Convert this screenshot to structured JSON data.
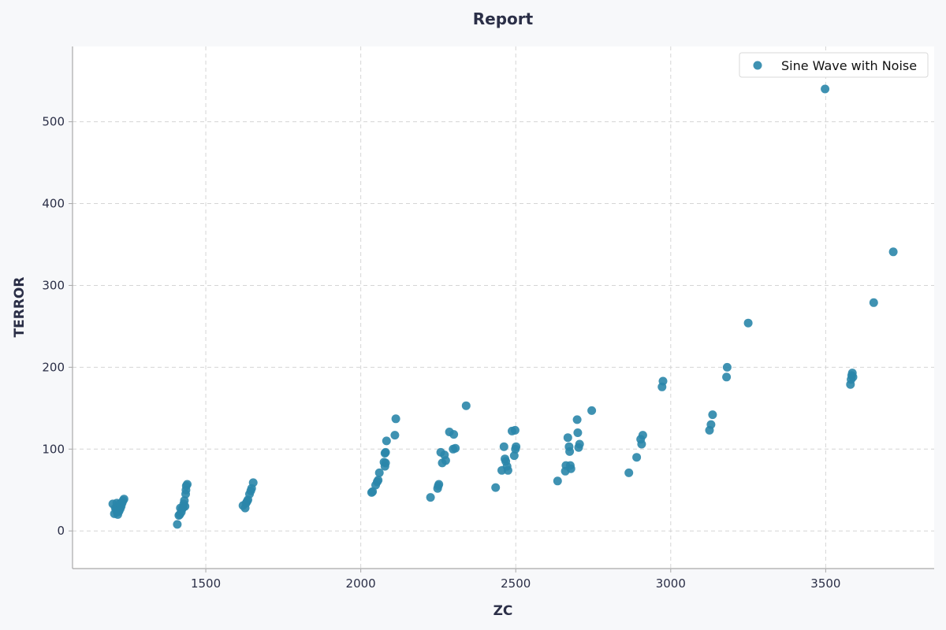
{
  "chart_data": {
    "type": "scatter",
    "title": "Report",
    "xlabel": "ZC",
    "ylabel": "TERROR",
    "xlim": [
      1070,
      3850
    ],
    "ylim": [
      -46,
      592
    ],
    "xticks": [
      1500,
      2000,
      2500,
      3000,
      3500
    ],
    "yticks": [
      0,
      100,
      200,
      300,
      400,
      500
    ],
    "grid": true,
    "legend_position": "top-right",
    "colors": {
      "point": "#2a86aa",
      "background": "#f7f8fa",
      "plot_background": "#ffffff",
      "grid": "#d5d5d5",
      "axis": "#a9a9a9",
      "text": "#2b2f47"
    },
    "series": [
      {
        "name": "Sine Wave with Noise",
        "points": [
          [
            1200,
            33
          ],
          [
            1205,
            21
          ],
          [
            1208,
            28
          ],
          [
            1211,
            26
          ],
          [
            1213,
            34
          ],
          [
            1214,
            23
          ],
          [
            1216,
            20
          ],
          [
            1218,
            29
          ],
          [
            1220,
            24
          ],
          [
            1222,
            33
          ],
          [
            1224,
            27
          ],
          [
            1227,
            30
          ],
          [
            1230,
            34
          ],
          [
            1233,
            37
          ],
          [
            1236,
            39
          ],
          [
            1408,
            8
          ],
          [
            1413,
            19
          ],
          [
            1416,
            20
          ],
          [
            1418,
            28
          ],
          [
            1421,
            23
          ],
          [
            1424,
            27
          ],
          [
            1427,
            29
          ],
          [
            1429,
            33
          ],
          [
            1431,
            37
          ],
          [
            1433,
            30
          ],
          [
            1435,
            45
          ],
          [
            1436,
            50
          ],
          [
            1437,
            55
          ],
          [
            1440,
            57
          ],
          [
            1620,
            31
          ],
          [
            1627,
            28
          ],
          [
            1630,
            34
          ],
          [
            1633,
            36
          ],
          [
            1636,
            38
          ],
          [
            1641,
            45
          ],
          [
            1645,
            49
          ],
          [
            1648,
            52
          ],
          [
            1653,
            59
          ],
          [
            2035,
            47
          ],
          [
            2038,
            48
          ],
          [
            2048,
            56
          ],
          [
            2053,
            60
          ],
          [
            2056,
            62
          ],
          [
            2060,
            71
          ],
          [
            2075,
            84
          ],
          [
            2078,
            79
          ],
          [
            2080,
            83
          ],
          [
            2078,
            95
          ],
          [
            2080,
            96
          ],
          [
            2083,
            110
          ],
          [
            2110,
            117
          ],
          [
            2113,
            137
          ],
          [
            2225,
            41
          ],
          [
            2248,
            52
          ],
          [
            2250,
            55
          ],
          [
            2252,
            57
          ],
          [
            2258,
            96
          ],
          [
            2263,
            83
          ],
          [
            2270,
            93
          ],
          [
            2274,
            86
          ],
          [
            2286,
            121
          ],
          [
            2298,
            100
          ],
          [
            2300,
            118
          ],
          [
            2305,
            101
          ],
          [
            2340,
            153
          ],
          [
            2435,
            53
          ],
          [
            2455,
            74
          ],
          [
            2462,
            103
          ],
          [
            2465,
            88
          ],
          [
            2468,
            85
          ],
          [
            2472,
            79
          ],
          [
            2475,
            74
          ],
          [
            2488,
            122
          ],
          [
            2495,
            92
          ],
          [
            2498,
            123
          ],
          [
            2499,
            100
          ],
          [
            2501,
            103
          ],
          [
            2635,
            61
          ],
          [
            2660,
            73
          ],
          [
            2662,
            80
          ],
          [
            2668,
            114
          ],
          [
            2672,
            103
          ],
          [
            2674,
            97
          ],
          [
            2676,
            80
          ],
          [
            2678,
            76
          ],
          [
            2698,
            136
          ],
          [
            2700,
            120
          ],
          [
            2703,
            102
          ],
          [
            2706,
            106
          ],
          [
            2745,
            147
          ],
          [
            2865,
            71
          ],
          [
            2890,
            90
          ],
          [
            2903,
            112
          ],
          [
            2906,
            106
          ],
          [
            2910,
            117
          ],
          [
            2972,
            176
          ],
          [
            2975,
            183
          ],
          [
            3125,
            123
          ],
          [
            3130,
            130
          ],
          [
            3135,
            142
          ],
          [
            3180,
            188
          ],
          [
            3182,
            200
          ],
          [
            3250,
            254
          ],
          [
            3498,
            540
          ],
          [
            3580,
            179
          ],
          [
            3582,
            185
          ],
          [
            3584,
            190
          ],
          [
            3586,
            193
          ],
          [
            3588,
            188
          ],
          [
            3655,
            279
          ],
          [
            3718,
            341
          ]
        ]
      }
    ]
  }
}
